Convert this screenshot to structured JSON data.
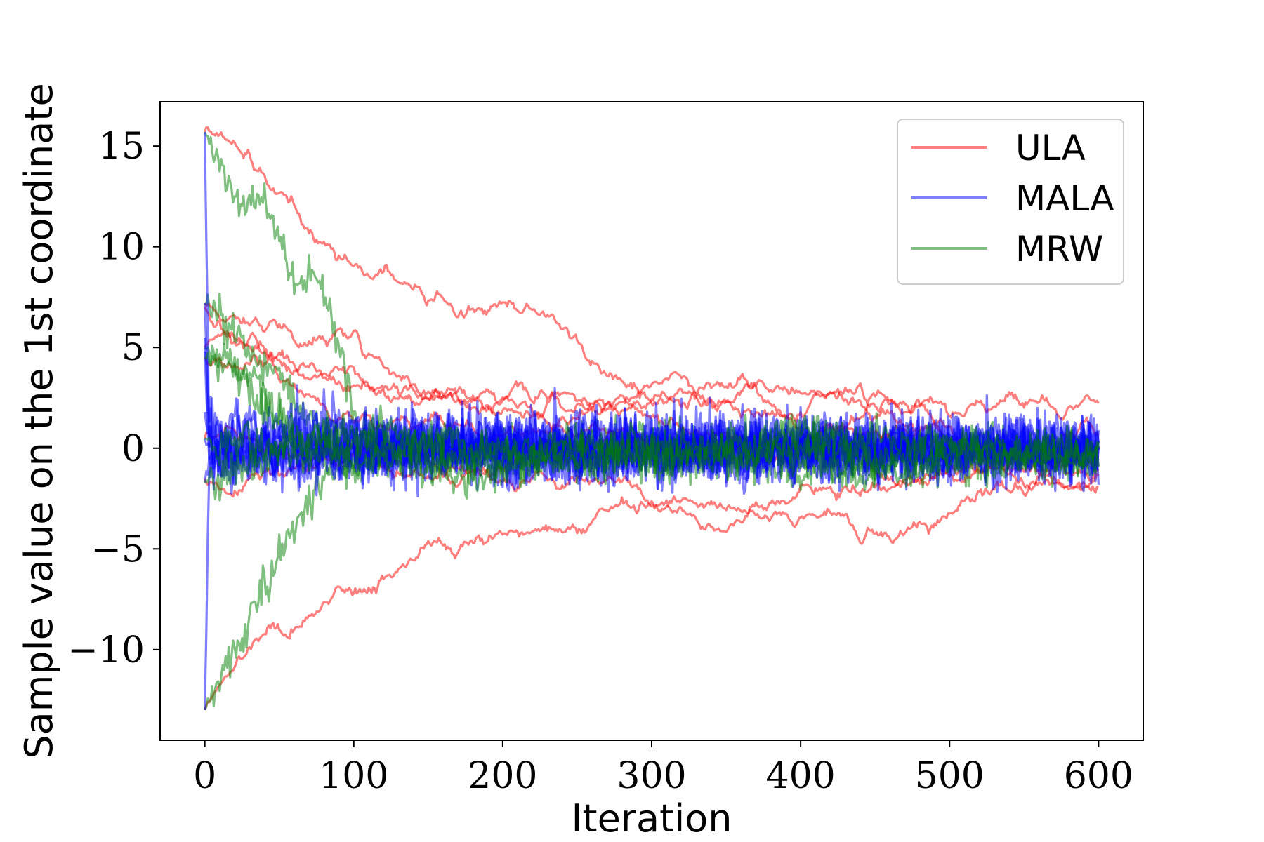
{
  "chart_data": {
    "type": "line",
    "xlabel": "Iteration",
    "ylabel": "Sample value on the 1st coordinate",
    "xlim": [
      -30,
      630
    ],
    "ylim": [
      -14.5,
      17.2
    ],
    "xticks": [
      0,
      100,
      200,
      300,
      400,
      500,
      600
    ],
    "xtick_labels": [
      "0",
      "100",
      "200",
      "300",
      "400",
      "500",
      "600"
    ],
    "yticks": [
      -10,
      -5,
      0,
      5,
      10,
      15
    ],
    "ytick_labels": [
      "−10",
      "−5",
      "0",
      "5",
      "10",
      "15"
    ],
    "grid": false,
    "legend": {
      "position": "top-right"
    },
    "x_end": 600,
    "series": [
      {
        "name": "ULA",
        "color": "#ff0000",
        "chains": [
          {
            "x": [
              0,
              50,
              100,
              150,
              200,
              250,
              300,
              350,
              400,
              450,
              500,
              550,
              600
            ],
            "values": [
              15.7,
              12.5,
              9.5,
              7.8,
              6.5,
              4.5,
              3.0,
              2.8,
              3.2,
              3.4,
              3.0,
              3.0,
              3.0
            ]
          },
          {
            "x": [
              0,
              50,
              100,
              150,
              200,
              250,
              300,
              350,
              400,
              450,
              500,
              550,
              600
            ],
            "values": [
              -13.0,
              -9.2,
              -7.2,
              -5.3,
              -4.2,
              -3.8,
              -2.2,
              -2.6,
              -1.7,
              -1.0,
              -1.2,
              -0.8,
              -0.4
            ]
          },
          {
            "x": [
              0,
              50,
              100,
              150,
              200,
              250,
              300,
              350,
              400,
              450,
              500,
              550,
              600
            ],
            "values": [
              7.2,
              6.2,
              5.0,
              3.8,
              3.0,
              2.3,
              2.5,
              1.6,
              1.0,
              0.5,
              0.8,
              0.3,
              0.5
            ]
          },
          {
            "x": [
              0,
              50,
              100,
              150,
              200,
              250,
              300,
              350,
              400,
              450,
              500,
              550,
              600
            ],
            "values": [
              7.0,
              5.5,
              4.2,
              3.2,
              2.5,
              2.8,
              3.5,
              2.5,
              3.2,
              3.0,
              2.0,
              1.0,
              0.5
            ]
          },
          {
            "x": [
              0,
              50,
              100,
              150,
              200,
              250,
              300,
              350,
              400,
              450,
              500,
              550,
              600
            ],
            "values": [
              5.0,
              4.0,
              3.2,
              2.7,
              2.0,
              1.5,
              1.0,
              0.5,
              0.0,
              0.5,
              -0.5,
              -0.5,
              -0.5
            ]
          },
          {
            "x": [
              0,
              50,
              100,
              150,
              200,
              250,
              300,
              350,
              400,
              450,
              500,
              550,
              600
            ],
            "values": [
              4.5,
              3.5,
              2.5,
              2.0,
              1.5,
              1.0,
              0.5,
              1.0,
              0.0,
              -0.5,
              -1.0,
              -1.5,
              -1.5
            ]
          },
          {
            "x": [
              0,
              50,
              100,
              150,
              200,
              250,
              300,
              350,
              400,
              450,
              500,
              550,
              600
            ],
            "values": [
              0.5,
              0.3,
              0.0,
              -0.5,
              -1.0,
              -1.0,
              -1.5,
              -2.5,
              -2.8,
              -2.0,
              -1.5,
              -1.0,
              -0.5
            ]
          },
          {
            "x": [
              0,
              50,
              100,
              150,
              200,
              250,
              300,
              350,
              400,
              450,
              500,
              550,
              600
            ],
            "values": [
              -1.5,
              -1.0,
              -0.5,
              -0.5,
              0.0,
              0.5,
              0.0,
              -1.0,
              -0.5,
              0.0,
              0.0,
              0.5,
              0.0
            ]
          }
        ]
      },
      {
        "name": "MALA",
        "color": "#0000ff",
        "chains": [
          {
            "x": [
              0,
              3,
              600
            ],
            "values": [
              15.7,
              0.5,
              0.0
            ]
          },
          {
            "x": [
              0,
              3,
              600
            ],
            "values": [
              -13.0,
              -0.5,
              0.0
            ]
          },
          {
            "x": [
              0,
              3,
              600
            ],
            "values": [
              7.2,
              1.0,
              0.0
            ]
          },
          {
            "x": [
              0,
              3,
              600
            ],
            "values": [
              5.5,
              0.0,
              0.0
            ]
          },
          {
            "x": [
              0,
              3,
              600
            ],
            "values": [
              4.8,
              -0.5,
              0.0
            ]
          },
          {
            "x": [
              0,
              3,
              600
            ],
            "values": [
              1.8,
              0.5,
              0.0
            ]
          },
          {
            "x": [
              0,
              3,
              600
            ],
            "values": [
              0.5,
              0.0,
              0.0
            ]
          },
          {
            "x": [
              0,
              3,
              600
            ],
            "values": [
              -1.7,
              -0.3,
              0.0
            ]
          }
        ]
      },
      {
        "name": "MRW",
        "color": "#008000",
        "chains": [
          {
            "x": [
              0,
              20,
              40,
              60,
              80,
              100,
              150,
              200,
              600
            ],
            "values": [
              15.7,
              12.8,
              12.5,
              9.0,
              8.5,
              2.0,
              0.5,
              0.0,
              0.0
            ]
          },
          {
            "x": [
              0,
              20,
              40,
              60,
              80,
              100,
              150,
              200,
              600
            ],
            "values": [
              -13.0,
              -10.5,
              -7.5,
              -4.5,
              -2.5,
              -1.0,
              0.0,
              0.0,
              0.0
            ]
          },
          {
            "x": [
              0,
              20,
              40,
              60,
              80,
              100,
              150,
              200,
              600
            ],
            "values": [
              7.2,
              5.5,
              4.0,
              2.5,
              1.5,
              0.8,
              0.3,
              0.0,
              0.0
            ]
          },
          {
            "x": [
              0,
              20,
              40,
              60,
              80,
              100,
              150,
              200,
              600
            ],
            "values": [
              5.0,
              4.5,
              3.0,
              2.0,
              1.0,
              0.5,
              0.0,
              0.0,
              0.0
            ]
          },
          {
            "x": [
              0,
              20,
              40,
              60,
              80,
              100,
              150,
              200,
              600
            ],
            "values": [
              4.5,
              3.5,
              2.0,
              1.0,
              0.5,
              0.0,
              0.0,
              0.0,
              0.0
            ]
          },
          {
            "x": [
              0,
              20,
              40,
              60,
              80,
              100,
              150,
              200,
              600
            ],
            "values": [
              0.5,
              0.0,
              0.0,
              0.0,
              0.0,
              0.0,
              0.0,
              0.0,
              0.0
            ]
          },
          {
            "x": [
              0,
              20,
              40,
              60,
              80,
              100,
              150,
              200,
              600
            ],
            "values": [
              -1.7,
              -1.0,
              -0.5,
              0.0,
              0.0,
              0.0,
              0.0,
              0.0,
              0.0
            ]
          }
        ]
      }
    ]
  }
}
